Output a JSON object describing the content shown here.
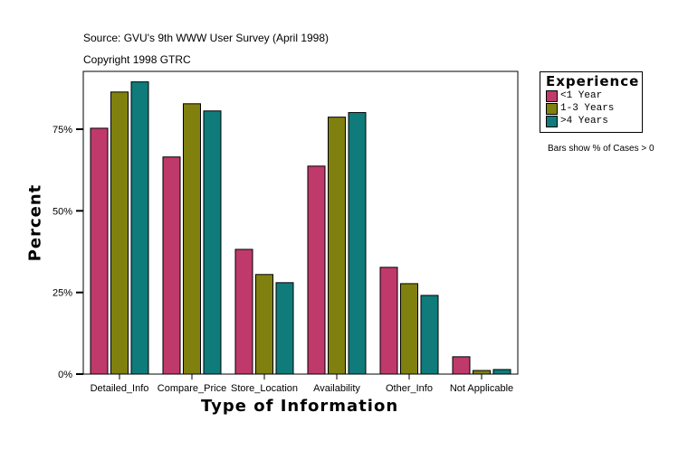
{
  "chart_data": {
    "type": "bar",
    "title": "Source: GVU's 9th WWW User Survey (April 1998)",
    "subtitle": "Copyright 1998 GTRC",
    "xlabel": "Type of Information",
    "ylabel": "Percent",
    "note": "Bars show % of Cases > 0",
    "ylim": [
      0,
      93
    ],
    "yticks": [
      0,
      25,
      50,
      75
    ],
    "ytick_labels": [
      "0%",
      "25%",
      "50%",
      "75%"
    ],
    "grid": false,
    "legend_title": "Experience",
    "legend_placement": "top-right",
    "categories": [
      "Detailed_Info",
      "Compare_Price",
      "Store_Location",
      "Availability",
      "Other_Info",
      "Not Applicable"
    ],
    "series": [
      {
        "name": "<1 Year",
        "color": "#c0396b",
        "values": [
          75.3,
          66.5,
          38.2,
          63.7,
          32.7,
          5.3
        ]
      },
      {
        "name": "1-3 Years",
        "color": "#80800f",
        "values": [
          86.4,
          82.8,
          30.5,
          78.7,
          27.7,
          1.1
        ]
      },
      {
        "name": ">4 Years",
        "color": "#0f7b7b",
        "values": [
          89.5,
          80.6,
          28.0,
          80.1,
          24.1,
          1.4
        ]
      }
    ]
  }
}
